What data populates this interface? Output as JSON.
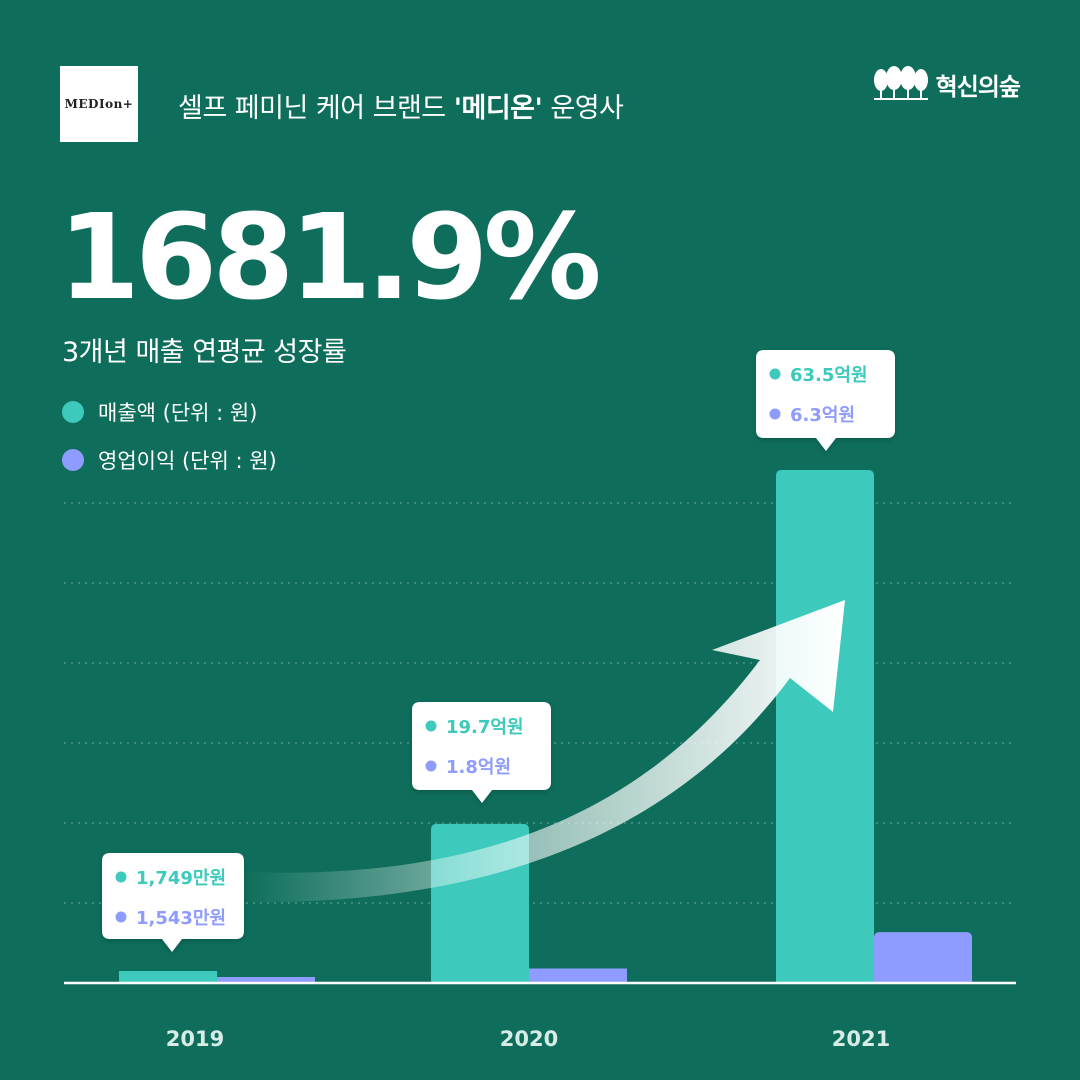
{
  "header": {
    "logo_text": "MEDIon+",
    "tagline_prefix": "셀프 페미닌 케어 브랜드 ",
    "tagline_brand": "'메디온'",
    "tagline_suffix": " 운영사",
    "company": "혁신의숲"
  },
  "headline": {
    "value": "1681.9%",
    "caption": "3개년 매출 연평균 성장률"
  },
  "colors": {
    "background": "#0e6e5b",
    "revenue": "#3dc9bc",
    "profit": "#8f9cff"
  },
  "chart_data": {
    "type": "bar",
    "categories": [
      "2019",
      "2020",
      "2021"
    ],
    "series": [
      {
        "name": "매출액 (단위 : 원)",
        "values": [
          0.1749,
          19.7,
          63.5
        ],
        "labels": [
          "1,749만원",
          "19.7억원",
          "63.5억원"
        ]
      },
      {
        "name": "영업이익 (단위 : 원)",
        "values": [
          0.1543,
          1.8,
          6.3
        ],
        "labels": [
          "1,543만원",
          "1.8억원",
          "6.3억원"
        ]
      }
    ],
    "value_unit": "억원",
    "ylim": [
      0,
      70
    ],
    "grid": true,
    "legend": "top-left",
    "annotation": "upward growth arrow"
  }
}
